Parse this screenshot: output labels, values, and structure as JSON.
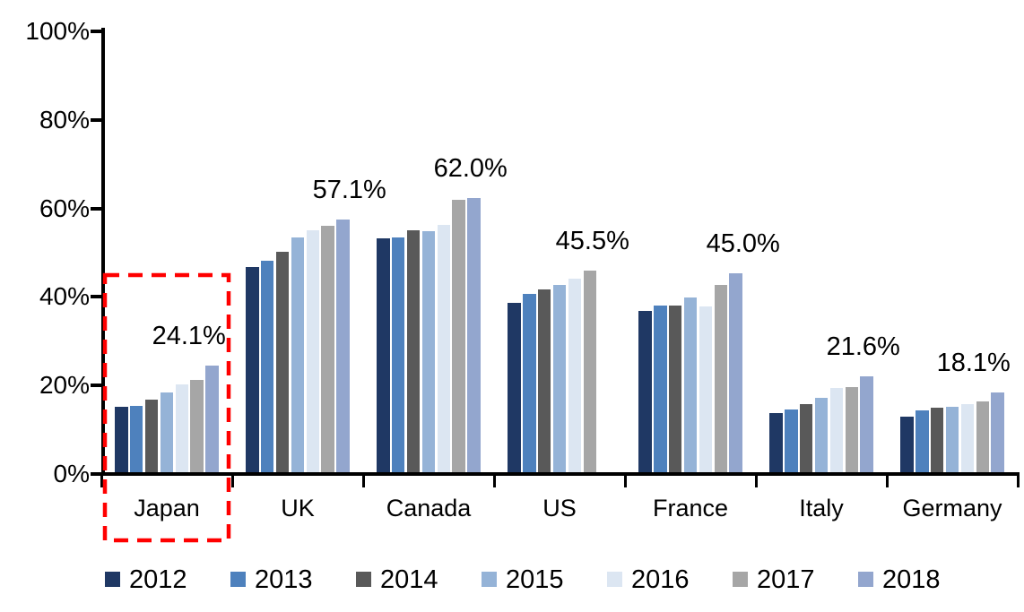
{
  "chart_data": {
    "type": "bar",
    "title": "",
    "categories": [
      "Japan",
      "UK",
      "Canada",
      "US",
      "France",
      "Italy",
      "Germany"
    ],
    "series": [
      {
        "name": "2012",
        "color": "#1F3864",
        "values": [
          14.8,
          46.3,
          52.8,
          38.3,
          36.5,
          13.3,
          12.6
        ]
      },
      {
        "name": "2013",
        "color": "#4E81BD",
        "values": [
          15.0,
          47.7,
          53.1,
          40.2,
          37.7,
          14.2,
          14.0
        ]
      },
      {
        "name": "2014",
        "color": "#595959",
        "values": [
          16.5,
          49.9,
          54.7,
          41.3,
          37.7,
          15.4,
          14.5
        ]
      },
      {
        "name": "2015",
        "color": "#95B3D7",
        "values": [
          18.0,
          53.1,
          54.4,
          42.3,
          39.4,
          16.9,
          14.8
        ]
      },
      {
        "name": "2016",
        "color": "#DCE6F2",
        "values": [
          19.8,
          54.6,
          55.9,
          43.7,
          37.5,
          19.0,
          15.4
        ]
      },
      {
        "name": "2017",
        "color": "#A6A6A6",
        "values": [
          20.8,
          55.7,
          61.5,
          45.5,
          42.4,
          19.2,
          16.0
        ]
      },
      {
        "name": "2018",
        "color": "#93A6CE",
        "values": [
          24.1,
          57.1,
          62.0,
          null,
          45.0,
          21.6,
          18.1
        ]
      }
    ],
    "data_labels": [
      {
        "category": "Japan",
        "text": "24.1%",
        "dx": -26
      },
      {
        "category": "UK",
        "text": "57.1%",
        "dx": 7
      },
      {
        "category": "Canada",
        "text": "62.0%",
        "dx": -4
      },
      {
        "category": "US",
        "text": "45.5%",
        "dx": 3
      },
      {
        "category": "France",
        "text": "45.0%",
        "dx": 8
      },
      {
        "category": "Italy",
        "text": "21.6%",
        "dx": -4
      },
      {
        "category": "Germany",
        "text": "18.1%",
        "dx": -27
      }
    ],
    "y_axis": {
      "min": 0,
      "max": 100,
      "tick_values": [
        0,
        20,
        40,
        60,
        80,
        100
      ],
      "tick_labels": [
        "0%",
        "20%",
        "40%",
        "60%",
        "80%",
        "100%"
      ]
    },
    "x_axis": {
      "label": ""
    },
    "legend": {
      "position": "bottom",
      "items": [
        "2012",
        "2013",
        "2014",
        "2015",
        "2016",
        "2017",
        "2018"
      ]
    },
    "annotation": {
      "type": "dashed-box",
      "target_category": "Japan",
      "color": "#FF0000"
    },
    "grid": "off",
    "background": "#FFFFFF",
    "axis_color": "#000000",
    "text_color": "#000000"
  }
}
